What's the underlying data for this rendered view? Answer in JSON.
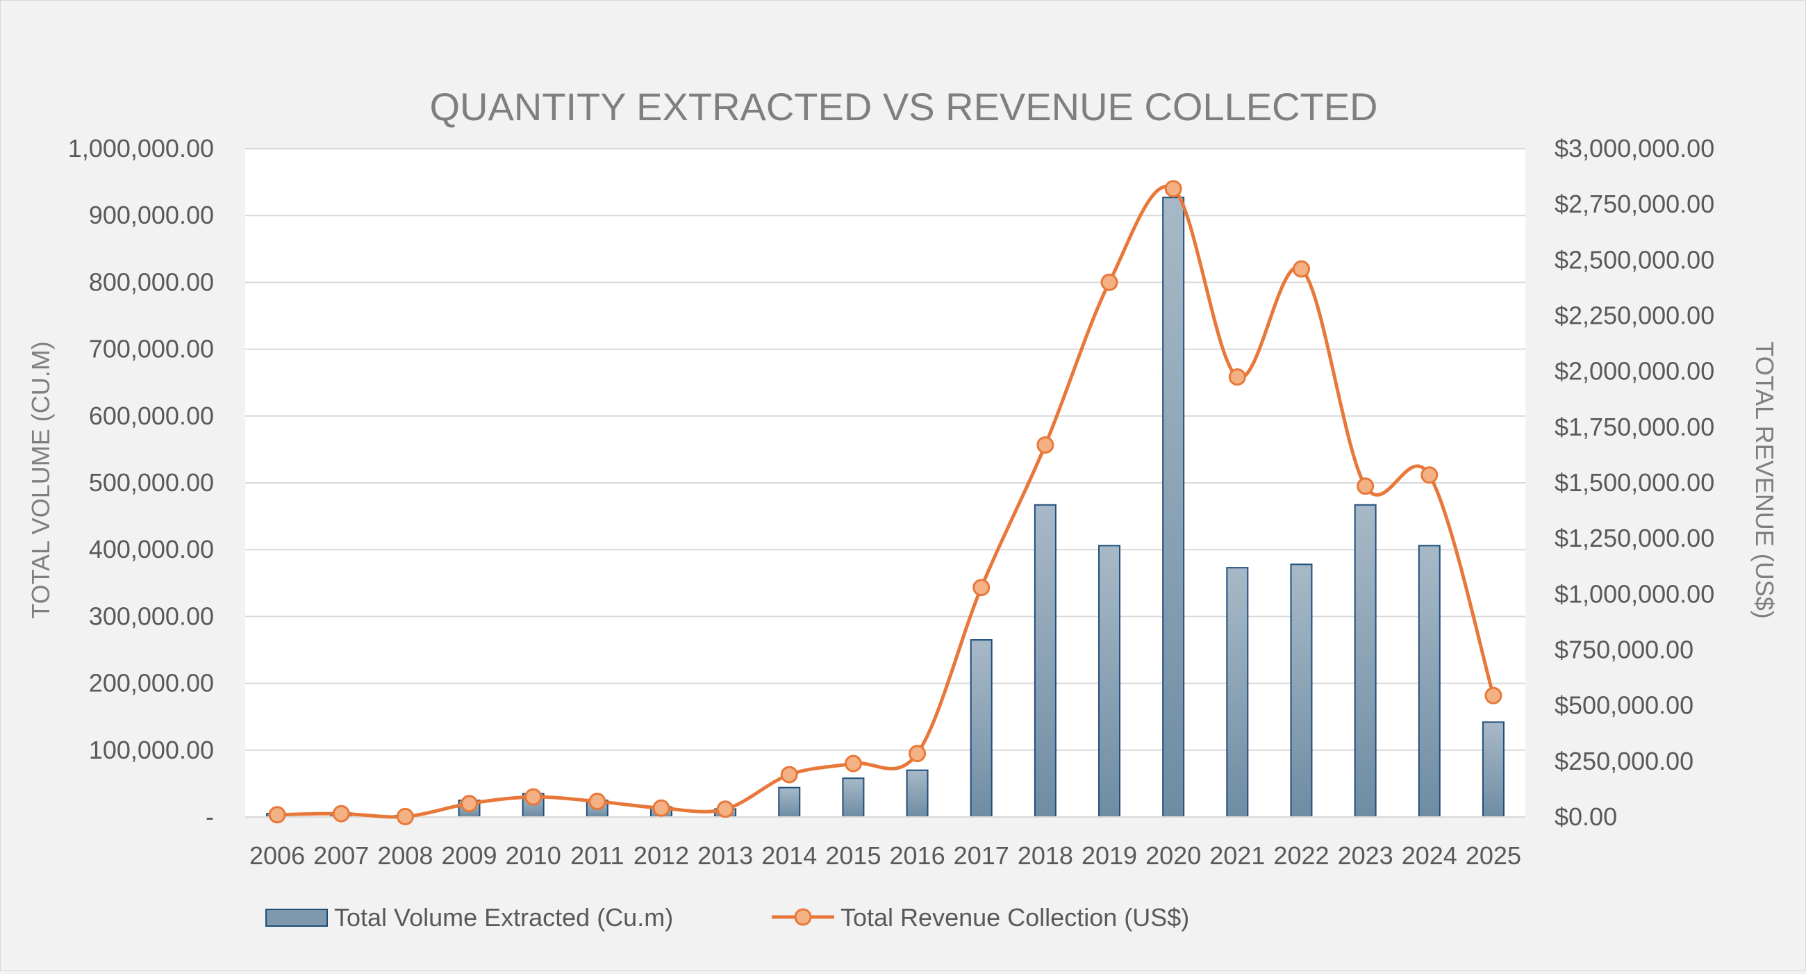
{
  "chart_data": {
    "type": "bar",
    "title": "QUANTITY EXTRACTED VS REVENUE COLLECTED",
    "categories": [
      "2006",
      "2007",
      "2008",
      "2009",
      "2010",
      "2011",
      "2012",
      "2013",
      "2014",
      "2015",
      "2016",
      "2017",
      "2018",
      "2019",
      "2020",
      "2021",
      "2022",
      "2023",
      "2024",
      "2025"
    ],
    "series": [
      {
        "name": "Total Volume Extracted (Cu.m)",
        "type": "bar",
        "axis": "left",
        "color": "#7e99ae",
        "values": [
          5000,
          6000,
          2000,
          25000,
          35000,
          25000,
          15000,
          12000,
          44000,
          58000,
          70000,
          265000,
          467000,
          406000,
          927000,
          373000,
          378000,
          467000,
          406000,
          142000
        ]
      },
      {
        "name": "Total Revenue Collection (US$)",
        "type": "line",
        "axis": "right",
        "color": "#e8783a",
        "values": [
          10000,
          15000,
          2000,
          60000,
          90000,
          70000,
          40000,
          35000,
          190000,
          240000,
          285000,
          1030000,
          1670000,
          2400000,
          2820000,
          1975000,
          2460000,
          1485000,
          1535000,
          545000
        ]
      }
    ],
    "y_left": {
      "label": "TOTAL VOLUME (CU.M)",
      "ylim": [
        0,
        1000000
      ],
      "ticks": [
        "-",
        "100,000.00",
        "200,000.00",
        "300,000.00",
        "400,000.00",
        "500,000.00",
        "600,000.00",
        "700,000.00",
        "800,000.00",
        "900,000.00",
        "1,000,000.00"
      ]
    },
    "y_right": {
      "label": "TOTAL REVENUE (US$)",
      "ylim": [
        0,
        3000000
      ],
      "ticks": [
        "$0.00",
        "$250,000.00",
        "$500,000.00",
        "$750,000.00",
        "$1,000,000.00",
        "$1,250,000.00",
        "$1,500,000.00",
        "$1,750,000.00",
        "$2,000,000.00",
        "$2,250,000.00",
        "$2,500,000.00",
        "$2,750,000.00",
        "$3,000,000.00"
      ]
    },
    "grid": true,
    "legend": "bottom",
    "plot_background": "#ffffff",
    "chart_background": "#f2f2f2"
  }
}
